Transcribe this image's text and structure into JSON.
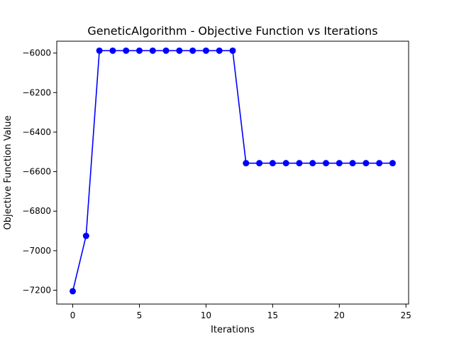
{
  "chart_data": {
    "type": "line",
    "title": "GeneticAlgorithm - Objective Function vs Iterations",
    "xlabel": "Iterations",
    "ylabel": "Objective Function Value",
    "xlim": [
      -1.2,
      25.2
    ],
    "ylim": [
      -7270,
      -5940
    ],
    "xticks": [
      0,
      5,
      10,
      15,
      20,
      25
    ],
    "yticks": [
      -7200,
      -7000,
      -6800,
      -6600,
      -6400,
      -6200,
      -6000
    ],
    "grid": false,
    "legend": "none",
    "series": [
      {
        "color": "#0000ff",
        "marker": "circle",
        "x": [
          0,
          1,
          2,
          3,
          4,
          5,
          6,
          7,
          8,
          9,
          10,
          11,
          12,
          13,
          14,
          15,
          16,
          17,
          18,
          19,
          20,
          21,
          22,
          23,
          24
        ],
        "y": [
          -7205,
          -6925,
          -5988,
          -5988,
          -5988,
          -5988,
          -5988,
          -5988,
          -5988,
          -5988,
          -5988,
          -5988,
          -5988,
          -6557,
          -6557,
          -6557,
          -6557,
          -6557,
          -6557,
          -6557,
          -6557,
          -6557,
          -6557,
          -6557,
          -6557
        ]
      }
    ]
  }
}
